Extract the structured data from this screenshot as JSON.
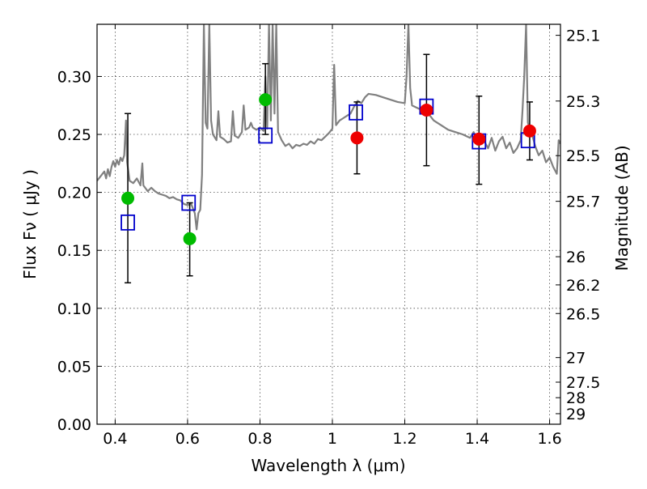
{
  "chart_data": {
    "type": "scatter",
    "xlabel": "Wavelength  λ (μm)",
    "ylabel": "Flux  Fν  ( μJy )",
    "ylabel_right": "Magnitude (AB)",
    "xlim": [
      0.35,
      1.63
    ],
    "ylim": [
      0.0,
      0.345
    ],
    "grid": true,
    "x_ticks": [
      0.4,
      0.6,
      0.8,
      1.0,
      1.2,
      1.4,
      1.6
    ],
    "x_tick_labels": [
      "0.4",
      "0.6",
      "0.8",
      "1",
      "1.2",
      "1.4",
      "1.6"
    ],
    "y_ticks": [
      0.0,
      0.05,
      0.1,
      0.15,
      0.2,
      0.25,
      0.3
    ],
    "y_tick_labels": [
      "0.00",
      "0.05",
      "0.10",
      "0.15",
      "0.20",
      "0.25",
      "0.30"
    ],
    "right_ticks": [
      {
        "flux": 0.3355,
        "label": "25.1"
      },
      {
        "flux": 0.2788,
        "label": "25.3"
      },
      {
        "flux": 0.2317,
        "label": "25.5"
      },
      {
        "flux": 0.1923,
        "label": "25.7"
      },
      {
        "flux": 0.1445,
        "label": "26"
      },
      {
        "flux": 0.1202,
        "label": "26.2"
      },
      {
        "flux": 0.0955,
        "label": "26.5"
      },
      {
        "flux": 0.0575,
        "label": "27"
      },
      {
        "flux": 0.0363,
        "label": "27.5"
      },
      {
        "flux": 0.0229,
        "label": "28"
      },
      {
        "flux": 0.0091,
        "label": "29"
      }
    ],
    "series": [
      {
        "color": "#808080",
        "type": "line",
        "points": [
          [
            0.35,
            0.21
          ],
          [
            0.36,
            0.214
          ],
          [
            0.37,
            0.218
          ],
          [
            0.375,
            0.212
          ],
          [
            0.38,
            0.22
          ],
          [
            0.385,
            0.214
          ],
          [
            0.39,
            0.222
          ],
          [
            0.395,
            0.227
          ],
          [
            0.4,
            0.222
          ],
          [
            0.405,
            0.228
          ],
          [
            0.41,
            0.224
          ],
          [
            0.415,
            0.23
          ],
          [
            0.42,
            0.227
          ],
          [
            0.425,
            0.232
          ],
          [
            0.43,
            0.262
          ],
          [
            0.433,
            0.226
          ],
          [
            0.44,
            0.21
          ],
          [
            0.45,
            0.208
          ],
          [
            0.46,
            0.212
          ],
          [
            0.47,
            0.206
          ],
          [
            0.475,
            0.225
          ],
          [
            0.478,
            0.206
          ],
          [
            0.49,
            0.201
          ],
          [
            0.5,
            0.204
          ],
          [
            0.51,
            0.201
          ],
          [
            0.52,
            0.199
          ],
          [
            0.53,
            0.198
          ],
          [
            0.54,
            0.197
          ],
          [
            0.55,
            0.195
          ],
          [
            0.56,
            0.196
          ],
          [
            0.57,
            0.194
          ],
          [
            0.58,
            0.193
          ],
          [
            0.59,
            0.19
          ],
          [
            0.6,
            0.189
          ],
          [
            0.61,
            0.19
          ],
          [
            0.62,
            0.182
          ],
          [
            0.625,
            0.168
          ],
          [
            0.63,
            0.182
          ],
          [
            0.635,
            0.185
          ],
          [
            0.64,
            0.215
          ],
          [
            0.645,
            0.345
          ],
          [
            0.65,
            0.26
          ],
          [
            0.655,
            0.255
          ],
          [
            0.66,
            0.345
          ],
          [
            0.665,
            0.262
          ],
          [
            0.67,
            0.25
          ],
          [
            0.68,
            0.245
          ],
          [
            0.685,
            0.27
          ],
          [
            0.69,
            0.248
          ],
          [
            0.7,
            0.246
          ],
          [
            0.71,
            0.243
          ],
          [
            0.72,
            0.244
          ],
          [
            0.725,
            0.27
          ],
          [
            0.73,
            0.249
          ],
          [
            0.74,
            0.247
          ],
          [
            0.75,
            0.252
          ],
          [
            0.755,
            0.275
          ],
          [
            0.76,
            0.254
          ],
          [
            0.77,
            0.256
          ],
          [
            0.775,
            0.26
          ],
          [
            0.78,
            0.256
          ],
          [
            0.79,
            0.254
          ],
          [
            0.8,
            0.256
          ],
          [
            0.81,
            0.253
          ],
          [
            0.815,
            0.3
          ],
          [
            0.82,
            0.255
          ],
          [
            0.825,
            0.345
          ],
          [
            0.83,
            0.262
          ],
          [
            0.835,
            0.345
          ],
          [
            0.84,
            0.268
          ],
          [
            0.845,
            0.345
          ],
          [
            0.85,
            0.252
          ],
          [
            0.86,
            0.245
          ],
          [
            0.87,
            0.24
          ],
          [
            0.88,
            0.242
          ],
          [
            0.89,
            0.238
          ],
          [
            0.9,
            0.241
          ],
          [
            0.91,
            0.24
          ],
          [
            0.92,
            0.242
          ],
          [
            0.93,
            0.241
          ],
          [
            0.94,
            0.244
          ],
          [
            0.95,
            0.242
          ],
          [
            0.96,
            0.246
          ],
          [
            0.97,
            0.245
          ],
          [
            0.98,
            0.248
          ],
          [
            0.99,
            0.251
          ],
          [
            1.0,
            0.255
          ],
          [
            1.005,
            0.31
          ],
          [
            1.01,
            0.258
          ],
          [
            1.02,
            0.262
          ],
          [
            1.03,
            0.264
          ],
          [
            1.04,
            0.266
          ],
          [
            1.05,
            0.268
          ],
          [
            1.06,
            0.274
          ],
          [
            1.07,
            0.279
          ],
          [
            1.08,
            0.277
          ],
          [
            1.09,
            0.282
          ],
          [
            1.1,
            0.285
          ],
          [
            1.12,
            0.284
          ],
          [
            1.14,
            0.282
          ],
          [
            1.16,
            0.28
          ],
          [
            1.18,
            0.278
          ],
          [
            1.2,
            0.277
          ],
          [
            1.205,
            0.3
          ],
          [
            1.21,
            0.345
          ],
          [
            1.215,
            0.29
          ],
          [
            1.22,
            0.275
          ],
          [
            1.24,
            0.272
          ],
          [
            1.25,
            0.27
          ],
          [
            1.26,
            0.268
          ],
          [
            1.27,
            0.266
          ],
          [
            1.28,
            0.262
          ],
          [
            1.3,
            0.258
          ],
          [
            1.32,
            0.254
          ],
          [
            1.34,
            0.252
          ],
          [
            1.36,
            0.25
          ],
          [
            1.38,
            0.247
          ],
          [
            1.39,
            0.252
          ],
          [
            1.4,
            0.245
          ],
          [
            1.41,
            0.249
          ],
          [
            1.42,
            0.244
          ],
          [
            1.43,
            0.238
          ],
          [
            1.44,
            0.247
          ],
          [
            1.45,
            0.236
          ],
          [
            1.46,
            0.244
          ],
          [
            1.47,
            0.248
          ],
          [
            1.48,
            0.238
          ],
          [
            1.49,
            0.243
          ],
          [
            1.5,
            0.234
          ],
          [
            1.51,
            0.238
          ],
          [
            1.52,
            0.245
          ],
          [
            1.525,
            0.27
          ],
          [
            1.53,
            0.3
          ],
          [
            1.535,
            0.345
          ],
          [
            1.54,
            0.26
          ],
          [
            1.55,
            0.252
          ],
          [
            1.56,
            0.24
          ],
          [
            1.57,
            0.232
          ],
          [
            1.58,
            0.236
          ],
          [
            1.59,
            0.226
          ],
          [
            1.6,
            0.23
          ],
          [
            1.61,
            0.222
          ],
          [
            1.62,
            0.216
          ],
          [
            1.625,
            0.245
          ],
          [
            1.63,
            0.242
          ]
        ]
      },
      {
        "color": "#0000cc",
        "type": "scatter",
        "marker": "open-square",
        "points": [
          [
            0.435,
            0.174
          ],
          [
            0.603,
            0.191
          ],
          [
            0.815,
            0.249
          ],
          [
            1.065,
            0.269
          ],
          [
            1.26,
            0.274
          ],
          [
            1.405,
            0.244
          ],
          [
            1.54,
            0.245
          ]
        ]
      },
      {
        "color": "#00bb00",
        "type": "scatter",
        "marker": "filled-circle",
        "points": [
          [
            0.435,
            0.195
          ],
          [
            0.606,
            0.16
          ],
          [
            0.815,
            0.28
          ]
        ]
      },
      {
        "color": "#ee0000",
        "type": "scatter",
        "marker": "filled-circle",
        "points": [
          [
            1.068,
            0.247
          ],
          [
            1.26,
            0.271
          ],
          [
            1.405,
            0.246
          ],
          [
            1.545,
            0.253
          ]
        ]
      }
    ],
    "error_bars": [
      {
        "x": 0.435,
        "low": 0.122,
        "high": 0.268
      },
      {
        "x": 0.606,
        "low": 0.128,
        "high": 0.191
      },
      {
        "x": 0.815,
        "low": 0.25,
        "high": 0.311
      },
      {
        "x": 1.068,
        "low": 0.216,
        "high": 0.278
      },
      {
        "x": 1.26,
        "low": 0.223,
        "high": 0.319
      },
      {
        "x": 1.405,
        "low": 0.207,
        "high": 0.283
      },
      {
        "x": 1.545,
        "low": 0.228,
        "high": 0.278
      }
    ]
  }
}
